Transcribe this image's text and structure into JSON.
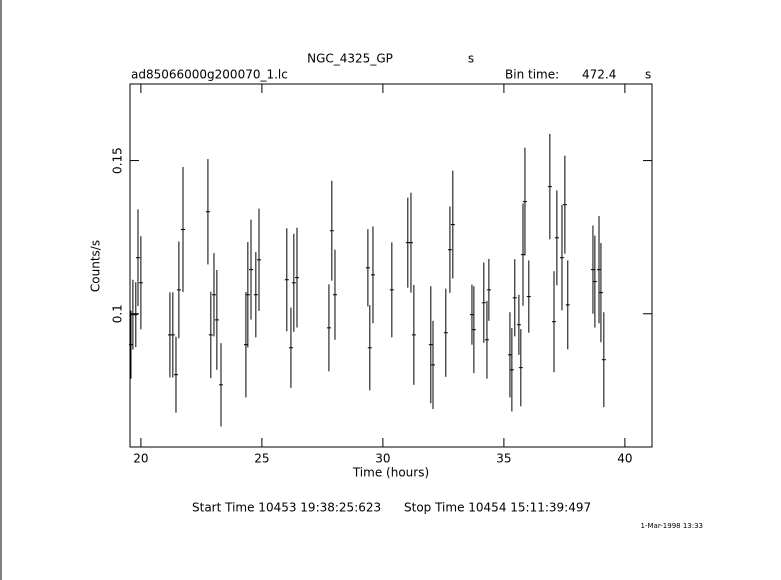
{
  "header": {
    "target": "NGC_4325_GP",
    "target_unit": "s",
    "file": "ad85066000g200070_1.lc",
    "bin_label": "Bin time:",
    "bin_value": "472.4",
    "bin_unit": "s"
  },
  "chart_data": {
    "type": "errorbar",
    "xlabel": "Time (hours)",
    "ylabel": "Counts/s",
    "xlim": [
      19.55,
      41.12
    ],
    "ylim": [
      0.0565,
      0.175
    ],
    "xticks": [
      20,
      25,
      30,
      35,
      40
    ],
    "yticks": [
      0.1,
      0.15
    ],
    "color": "#000000",
    "x": [
      19.59,
      19.67,
      19.79,
      19.88,
      20.0,
      21.2,
      21.32,
      21.45,
      21.57,
      21.74,
      22.77,
      22.89,
      23.02,
      23.14,
      23.31,
      24.34,
      24.42,
      24.55,
      24.75,
      24.88,
      26.03,
      26.2,
      26.32,
      26.45,
      27.77,
      27.89,
      28.02,
      29.38,
      29.46,
      29.59,
      30.37,
      31.03,
      31.16,
      31.28,
      31.98,
      32.07,
      32.6,
      32.77,
      32.89,
      33.68,
      33.76,
      34.17,
      34.3,
      34.38,
      35.25,
      35.33,
      35.45,
      35.62,
      35.7,
      35.79,
      35.87,
      36.03,
      36.9,
      37.07,
      37.19,
      37.4,
      37.52,
      37.64,
      38.68,
      38.76,
      38.93,
      39.01,
      39.13
    ],
    "values": [
      0.0899,
      0.0997,
      0.0997,
      0.1183,
      0.1101,
      0.0931,
      0.0931,
      0.0801,
      0.1078,
      0.1275,
      0.1333,
      0.0931,
      0.1062,
      0.098,
      0.0768,
      0.0899,
      0.1062,
      0.1144,
      0.1062,
      0.1176,
      0.1111,
      0.0889,
      0.1101,
      0.1118,
      0.0954,
      0.1271,
      0.1062,
      0.115,
      0.0889,
      0.1127,
      0.1078,
      0.1232,
      0.1232,
      0.0931,
      0.0899,
      0.0833,
      0.0938,
      0.1209,
      0.1291,
      0.0997,
      0.0948,
      0.1036,
      0.0915,
      0.1078,
      0.0866,
      0.0817,
      0.1052,
      0.0964,
      0.0824,
      0.1193,
      0.1366,
      0.1056,
      0.1415,
      0.0974,
      0.1248,
      0.1183,
      0.1356,
      0.1029,
      0.1144,
      0.1105,
      0.1144,
      0.1069,
      0.085
    ],
    "errors": [
      0.0111,
      0.0114,
      0.0106,
      0.0158,
      0.0152,
      0.0139,
      0.0139,
      0.0124,
      0.0158,
      0.0204,
      0.0172,
      0.0141,
      0.0136,
      0.0163,
      0.0136,
      0.0172,
      0.0172,
      0.0163,
      0.0139,
      0.0167,
      0.0168,
      0.0131,
      0.016,
      0.0163,
      0.0142,
      0.0163,
      0.0147,
      0.0126,
      0.0139,
      0.0158,
      0.0155,
      0.0147,
      0.0163,
      0.0163,
      0.0191,
      0.0144,
      0.0144,
      0.0141,
      0.0176,
      0.0098,
      0.0142,
      0.0131,
      0.0127,
      0.0101,
      0.0139,
      0.0136,
      0.0126,
      0.0098,
      0.0126,
      0.0167,
      0.0176,
      0.0118,
      0.0172,
      0.0165,
      0.0155,
      0.0172,
      0.016,
      0.0145,
      0.0144,
      0.015,
      0.0175,
      0.0162,
      0.0155
    ]
  },
  "footer": {
    "start": "Start Time 10453 19:38:25:623",
    "stop": "Stop Time 10454 15:11:39:497",
    "stamp": "1-Mar-1998 13:33"
  }
}
